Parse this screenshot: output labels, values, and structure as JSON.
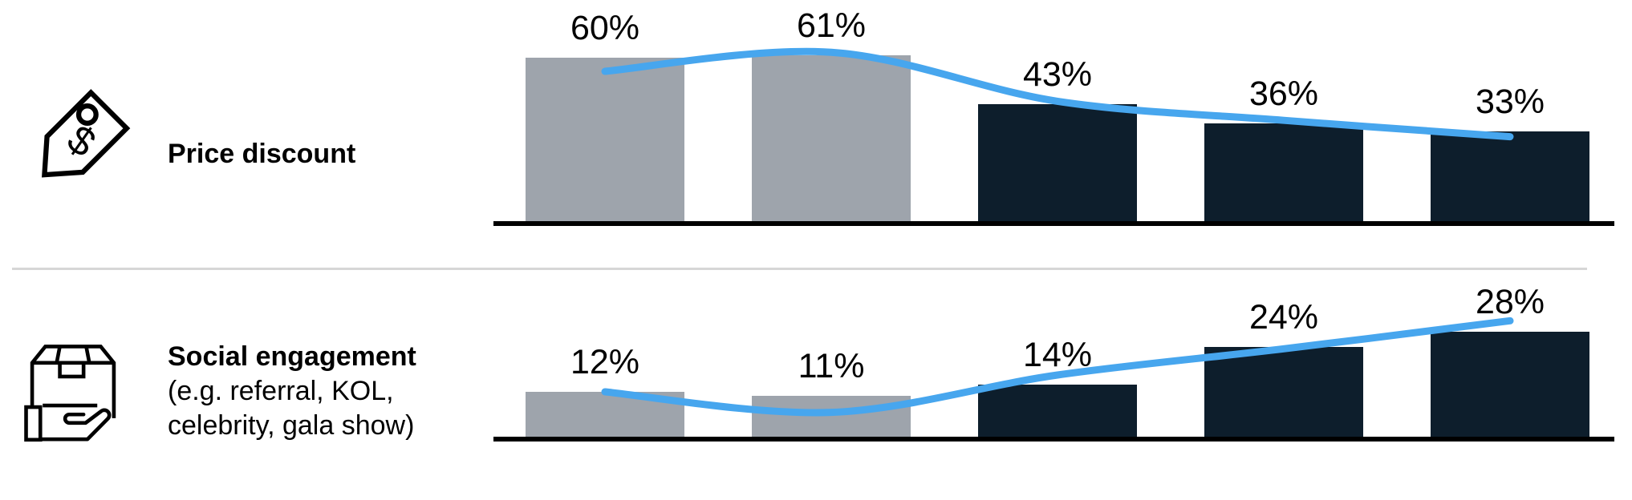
{
  "colors": {
    "gray_bar": "#9ea4ac",
    "dark_bar": "#0d1e2c",
    "trend_line": "#47a6ee",
    "baseline": "#000000",
    "divider": "#d6d6d6",
    "text": "#000000"
  },
  "chart_data": [
    {
      "type": "bar",
      "row_label": "Price discount",
      "icon": "price-tag-icon",
      "values": [
        60,
        61,
        43,
        36,
        33
      ],
      "value_labels": [
        "60%",
        "61%",
        "43%",
        "36%",
        "33%"
      ],
      "bar_color_roles": [
        "gray_bar",
        "gray_bar",
        "dark_bar",
        "dark_bar",
        "dark_bar"
      ],
      "line_values": [
        55,
        62,
        44,
        37,
        31
      ],
      "ylim": [
        0,
        65
      ],
      "grid": false,
      "legend": false
    },
    {
      "type": "bar",
      "row_label": "Social engagement",
      "row_sublabel": "(e.g. referral, KOL, celebrity, gala show)",
      "icon": "package-in-hand-icon",
      "values": [
        12,
        11,
        14,
        24,
        28
      ],
      "value_labels": [
        "12%",
        "11%",
        "14%",
        "24%",
        "28%"
      ],
      "bar_color_roles": [
        "gray_bar",
        "gray_bar",
        "dark_bar",
        "dark_bar",
        "dark_bar"
      ],
      "line_values": [
        12,
        6.5,
        16.5,
        23.5,
        31
      ],
      "ylim": [
        0,
        30
      ],
      "grid": false,
      "legend": false
    }
  ]
}
